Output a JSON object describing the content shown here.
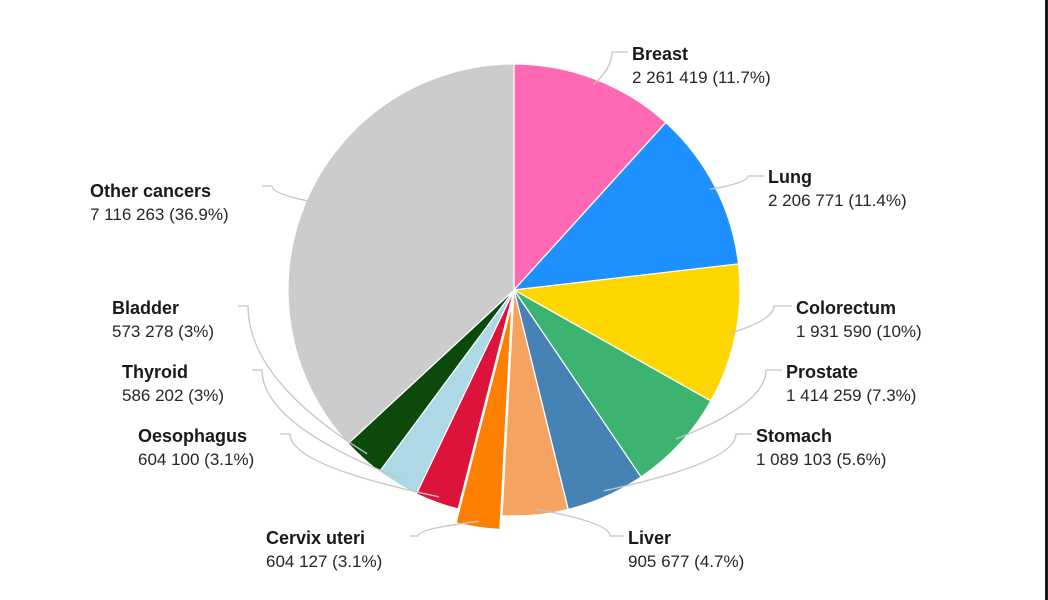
{
  "chart_data": {
    "type": "pie",
    "start_angle_deg": 0,
    "direction": "clockwise",
    "slices": [
      {
        "name": "Breast",
        "value": 2261419,
        "label": "2 261 419 (11.7%)",
        "color": "#ff69b4",
        "exploded": false
      },
      {
        "name": "Lung",
        "value": 2206771,
        "label": "2 206 771 (11.4%)",
        "color": "#1e90ff",
        "exploded": false
      },
      {
        "name": "Colorectum",
        "value": 1931590,
        "label": "1 931 590 (10%)",
        "color": "#ffd700",
        "exploded": false
      },
      {
        "name": "Prostate",
        "value": 1414259,
        "label": "1 414 259 (7.3%)",
        "color": "#3cb371",
        "exploded": false
      },
      {
        "name": "Stomach",
        "value": 1089103,
        "label": "1 089 103 (5.6%)",
        "color": "#4682b4",
        "exploded": false
      },
      {
        "name": "Liver",
        "value": 905677,
        "label": "905 677 (4.7%)",
        "color": "#f4a460",
        "exploded": false
      },
      {
        "name": "Cervix uteri",
        "value": 604127,
        "label": "604 127 (3.1%)",
        "color": "#ff7f00",
        "exploded": true
      },
      {
        "name": "Oesophagus",
        "value": 604100,
        "label": "604 100 (3.1%)",
        "color": "#dc143c",
        "exploded": false
      },
      {
        "name": "Thyroid",
        "value": 586202,
        "label": "586 202 (3%)",
        "color": "#add8e6",
        "exploded": false
      },
      {
        "name": "Bladder",
        "value": 573278,
        "label": "573 278 (3%)",
        "color": "#0b4a0b",
        "exploded": false
      },
      {
        "name": "Other cancers",
        "value": 7116263,
        "label": "7 116 263 (36.9%)",
        "color": "#cccccc",
        "exploded": false
      }
    ]
  }
}
